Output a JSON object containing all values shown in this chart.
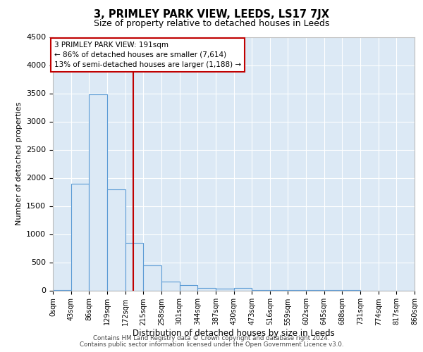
{
  "title": "3, PRIMLEY PARK VIEW, LEEDS, LS17 7JX",
  "subtitle": "Size of property relative to detached houses in Leeds",
  "xlabel": "Distribution of detached houses by size in Leeds",
  "ylabel": "Number of detached properties",
  "bin_labels": [
    "0sqm",
    "43sqm",
    "86sqm",
    "129sqm",
    "172sqm",
    "215sqm",
    "258sqm",
    "301sqm",
    "344sqm",
    "387sqm",
    "430sqm",
    "473sqm",
    "516sqm",
    "559sqm",
    "602sqm",
    "645sqm",
    "688sqm",
    "731sqm",
    "774sqm",
    "817sqm",
    "860sqm"
  ],
  "bin_edges": [
    0,
    43,
    86,
    129,
    172,
    215,
    258,
    301,
    344,
    387,
    430,
    473,
    516,
    559,
    602,
    645,
    688,
    731,
    774,
    817,
    860
  ],
  "bar_values": [
    10,
    1900,
    3480,
    1800,
    850,
    450,
    160,
    90,
    50,
    30,
    50,
    10,
    5,
    3,
    2,
    1,
    1,
    0,
    0,
    0
  ],
  "bar_color": "#dce9f5",
  "bar_edge_color": "#5b9bd5",
  "property_line_x": 191,
  "property_line_color": "#c00000",
  "annotation_lines": [
    "3 PRIMLEY PARK VIEW: 191sqm",
    "← 86% of detached houses are smaller (7,614)",
    "13% of semi-detached houses are larger (1,188) →"
  ],
  "annotation_box_color": "#c00000",
  "ylim": [
    0,
    4500
  ],
  "yticks": [
    0,
    500,
    1000,
    1500,
    2000,
    2500,
    3000,
    3500,
    4000,
    4500
  ],
  "footer1": "Contains HM Land Registry data © Crown copyright and database right 2024.",
  "footer2": "Contains public sector information licensed under the Open Government Licence v3.0.",
  "plot_bg_color": "#dce9f5",
  "fig_bg_color": "#ffffff"
}
